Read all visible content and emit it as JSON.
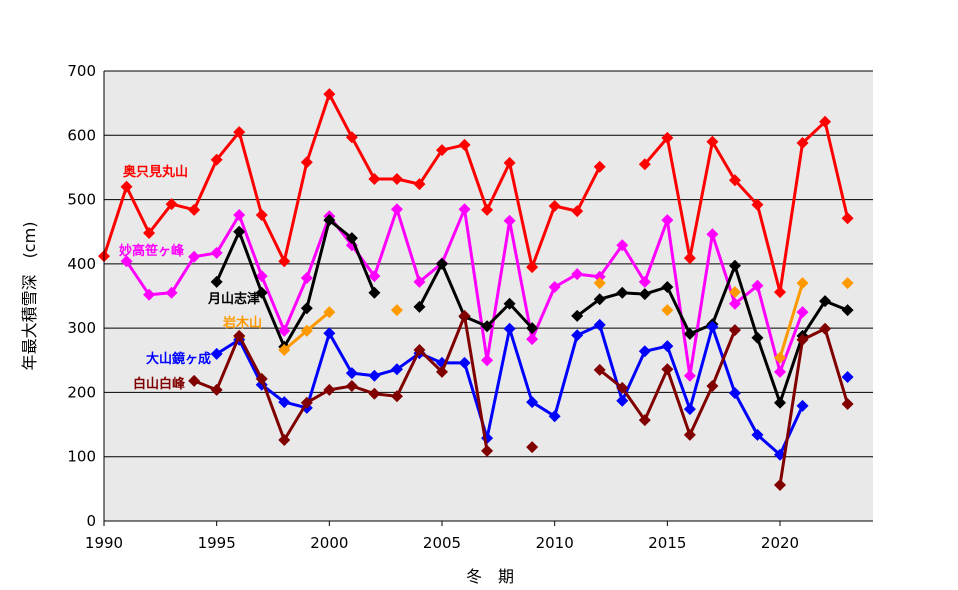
{
  "chart_data": {
    "type": "line",
    "title": "",
    "xlabel": "冬　期",
    "ylabel": "年最大積雪深　(cm)",
    "xlim": [
      1990,
      2024
    ],
    "ylim": [
      0,
      700
    ],
    "xticks": [
      1990,
      1995,
      2000,
      2005,
      2010,
      2015,
      2020
    ],
    "yticks": [
      0,
      100,
      200,
      300,
      400,
      500,
      600,
      700
    ],
    "grid": "horizontal",
    "legend": "inline labels",
    "x": [
      1990,
      1991,
      1992,
      1993,
      1994,
      1995,
      1996,
      1997,
      1998,
      1999,
      2000,
      2001,
      2002,
      2003,
      2004,
      2005,
      2006,
      2007,
      2008,
      2009,
      2010,
      2011,
      2012,
      2013,
      2014,
      2015,
      2016,
      2017,
      2018,
      2019,
      2020,
      2021,
      2022,
      2023
    ],
    "series": [
      {
        "name": "奥只見丸山",
        "color": "#ff0000",
        "values": [
          412,
          520,
          448,
          493,
          484,
          562,
          605,
          476,
          404,
          558,
          664,
          597,
          532,
          532,
          524,
          577,
          585,
          484,
          557,
          395,
          490,
          482,
          551,
          null,
          555,
          596,
          409,
          590,
          530,
          492,
          356,
          588,
          621,
          471
        ]
      },
      {
        "name": "妙高笹ヶ峰",
        "color": "#ff00ff",
        "values": [
          null,
          404,
          352,
          355,
          411,
          417,
          476,
          381,
          296,
          378,
          474,
          429,
          381,
          485,
          372,
          401,
          485,
          250,
          467,
          283,
          364,
          384,
          380,
          429,
          372,
          468,
          226,
          446,
          338,
          366,
          232,
          325,
          null,
          null
        ]
      },
      {
        "name": "月山志津",
        "color": "#000000",
        "values": [
          null,
          null,
          null,
          null,
          null,
          372,
          450,
          355,
          271,
          331,
          468,
          440,
          355,
          null,
          333,
          400,
          318,
          303,
          338,
          300,
          null,
          319,
          345,
          355,
          353,
          364,
          291,
          306,
          397,
          285,
          184,
          288,
          342,
          328
        ]
      },
      {
        "name": "岩木山",
        "color": "#ff9900",
        "values": [
          null,
          null,
          null,
          null,
          null,
          null,
          286,
          null,
          266,
          296,
          325,
          null,
          null,
          328,
          null,
          null,
          null,
          null,
          null,
          null,
          null,
          null,
          370,
          null,
          null,
          328,
          null,
          null,
          356,
          null,
          254,
          370,
          null,
          370
        ]
      },
      {
        "name": "大山鏡ヶ成",
        "color": "#0000ff",
        "values": [
          null,
          null,
          null,
          null,
          null,
          260,
          282,
          212,
          185,
          176,
          292,
          230,
          226,
          236,
          261,
          246,
          246,
          129,
          299,
          185,
          163,
          289,
          305,
          187,
          264,
          272,
          174,
          302,
          199,
          134,
          103,
          179,
          null,
          224
        ]
      },
      {
        "name": "白山白峰",
        "color": "#800000",
        "values": [
          null,
          null,
          null,
          null,
          218,
          204,
          288,
          221,
          126,
          184,
          204,
          210,
          198,
          194,
          266,
          232,
          319,
          109,
          null,
          115,
          null,
          null,
          235,
          207,
          157,
          236,
          134,
          210,
          297,
          null,
          56,
          282,
          299,
          182
        ]
      }
    ]
  }
}
